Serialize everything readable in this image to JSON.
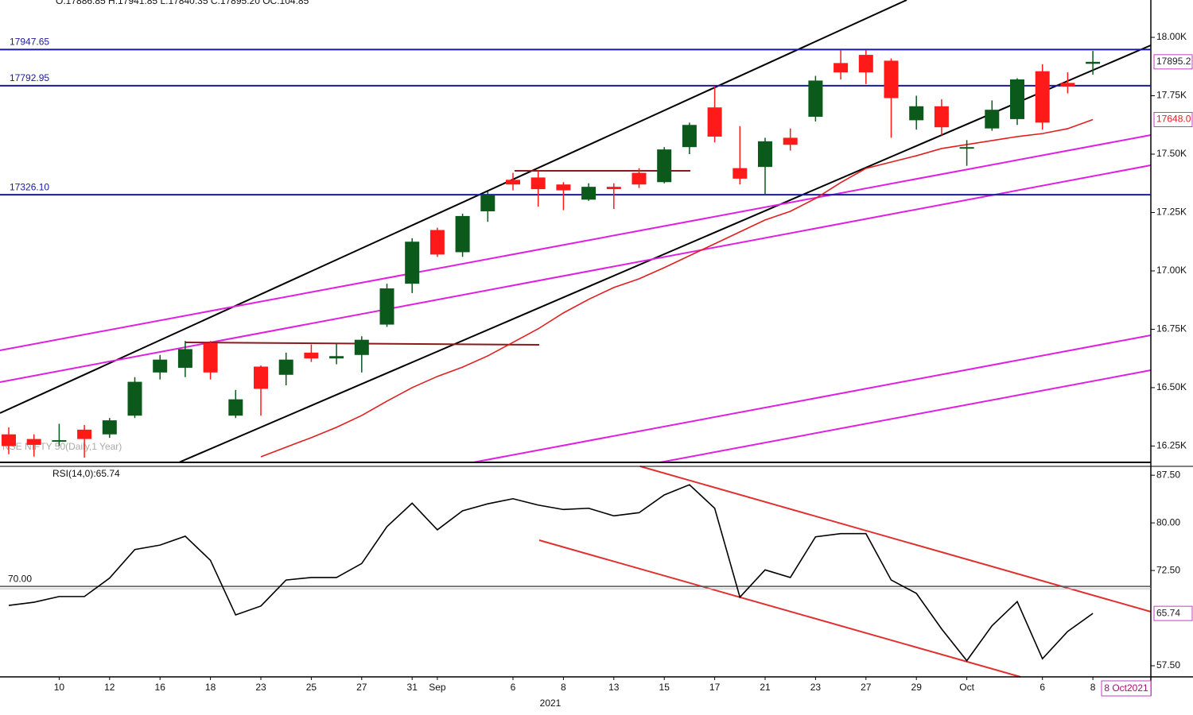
{
  "chart_data": {
    "type": "candlestick",
    "header": "O:17886.85 H:17941.85 L:17840.35 C:17895.20 OC:104.85",
    "watermark": "NSE NIFTY 50(Daily,1 Year)",
    "categories": [
      null,
      null,
      "10",
      null,
      "12",
      null,
      "16",
      null,
      "18",
      null,
      "23",
      null,
      "25",
      null,
      "27",
      null,
      "31",
      "Sep",
      null,
      null,
      "6",
      null,
      "8",
      null,
      "13",
      null,
      "15",
      null,
      "17",
      null,
      "21",
      null,
      "23",
      null,
      "27",
      null,
      "29",
      null,
      "Oct",
      null,
      null,
      "6",
      null,
      "8"
    ],
    "open": [
      16300,
      16280,
      16270,
      16320,
      16300,
      16380,
      16565,
      16585,
      16690,
      16380,
      16590,
      16555,
      16650,
      16625,
      16640,
      16770,
      16945,
      17175,
      17080,
      17255,
      17390,
      17400,
      17370,
      17305,
      17360,
      17420,
      17380,
      17530,
      17700,
      17440,
      17445,
      17570,
      17660,
      17890,
      17925,
      17900,
      17645,
      17705,
      17525,
      17610,
      17650,
      17855,
      17805,
      17886.85
    ],
    "high": [
      16330,
      16300,
      16345,
      16340,
      16370,
      16545,
      16640,
      16700,
      16700,
      16490,
      16595,
      16650,
      16685,
      16690,
      16720,
      16945,
      17140,
      17185,
      17245,
      17340,
      17420,
      17430,
      17380,
      17375,
      17375,
      17440,
      17530,
      17635,
      17790,
      17620,
      17570,
      17610,
      17835,
      17945,
      17945,
      17910,
      17750,
      17735,
      17560,
      17730,
      17825,
      17885,
      17850,
      17941.85
    ],
    "low": [
      16215,
      16205,
      16250,
      16200,
      16285,
      16370,
      16535,
      16545,
      16535,
      16370,
      16380,
      16510,
      16610,
      16600,
      16565,
      16760,
      16905,
      17060,
      17060,
      17210,
      17345,
      17275,
      17260,
      17300,
      17265,
      17355,
      17375,
      17500,
      17550,
      17370,
      17325,
      17515,
      17640,
      17820,
      17800,
      17570,
      17605,
      17580,
      17450,
      17600,
      17625,
      17605,
      17760,
      17840.35
    ],
    "close": [
      16250,
      16255,
      16275,
      16280,
      16360,
      16525,
      16620,
      16665,
      16565,
      16450,
      16495,
      16620,
      16625,
      16635,
      16705,
      16925,
      17125,
      17070,
      17235,
      17325,
      17370,
      17350,
      17345,
      17360,
      17350,
      17370,
      17520,
      17625,
      17575,
      17395,
      17555,
      17540,
      17815,
      17850,
      17850,
      17740,
      17705,
      17615,
      17530,
      17690,
      17820,
      17635,
      17790,
      17895.2
    ],
    "up_color": "#0b5a1c",
    "down_color": "#ff1a1a",
    "ylim": [
      16180,
      18160
    ],
    "yticks": [
      {
        "value": 16250,
        "label": "16.25K"
      },
      {
        "value": 16500,
        "label": "16.50K"
      },
      {
        "value": 16750,
        "label": "16.75K"
      },
      {
        "value": 17000,
        "label": "17.00K"
      },
      {
        "value": 17250,
        "label": "17.25K"
      },
      {
        "value": 17500,
        "label": "17.50K"
      },
      {
        "value": 17750,
        "label": "17.75K"
      },
      {
        "value": 18000,
        "label": "18.00K"
      }
    ],
    "levels": [
      17947.65,
      17792.95,
      {
        "value": 17326.1,
        "label": "17326.10"
      }
    ],
    "level_color": "#1a1aa0",
    "ma": {
      "color": "#e02020",
      "last_label": "17648.0",
      "values": [
        null,
        null,
        null,
        null,
        null,
        null,
        null,
        null,
        null,
        null,
        16204,
        16245,
        16286,
        16330,
        16381,
        16442,
        16500,
        16548,
        16588,
        16636,
        16694,
        16752,
        16820,
        16878,
        16929,
        16966,
        17014,
        17065,
        17116,
        17167,
        17218,
        17255,
        17310,
        17378,
        17439,
        17466,
        17493,
        17524,
        17541,
        17558,
        17575,
        17588,
        17609,
        17648
      ]
    },
    "rsi": {
      "title": "RSI(14,0):65.74",
      "color": "#000000",
      "values": [
        67.0,
        67.5,
        68.4,
        68.4,
        71.3,
        75.8,
        76.5,
        77.9,
        74.1,
        65.5,
        66.9,
        71.0,
        71.4,
        71.4,
        73.6,
        79.4,
        83.1,
        78.9,
        81.9,
        83.0,
        83.8,
        82.8,
        82.1,
        82.3,
        81.1,
        81.6,
        84.4,
        86.0,
        82.3,
        68.3,
        72.6,
        71.4,
        77.8,
        78.3,
        78.3,
        71.0,
        68.9,
        63.3,
        58.3,
        63.8,
        67.6,
        58.6,
        62.9,
        65.74
      ],
      "ylim": [
        55.75,
        88.9
      ],
      "yticks": [
        {
          "value": 57.5,
          "label": "57.50"
        },
        {
          "value": 72.5,
          "label": "72.50"
        },
        {
          "value": 80,
          "label": "80.00"
        },
        {
          "value": 87.5,
          "label": "87.50"
        }
      ],
      "level": {
        "value": 70,
        "label": "70.00"
      }
    },
    "year": "2021",
    "date_box": "8 Oct2021"
  }
}
